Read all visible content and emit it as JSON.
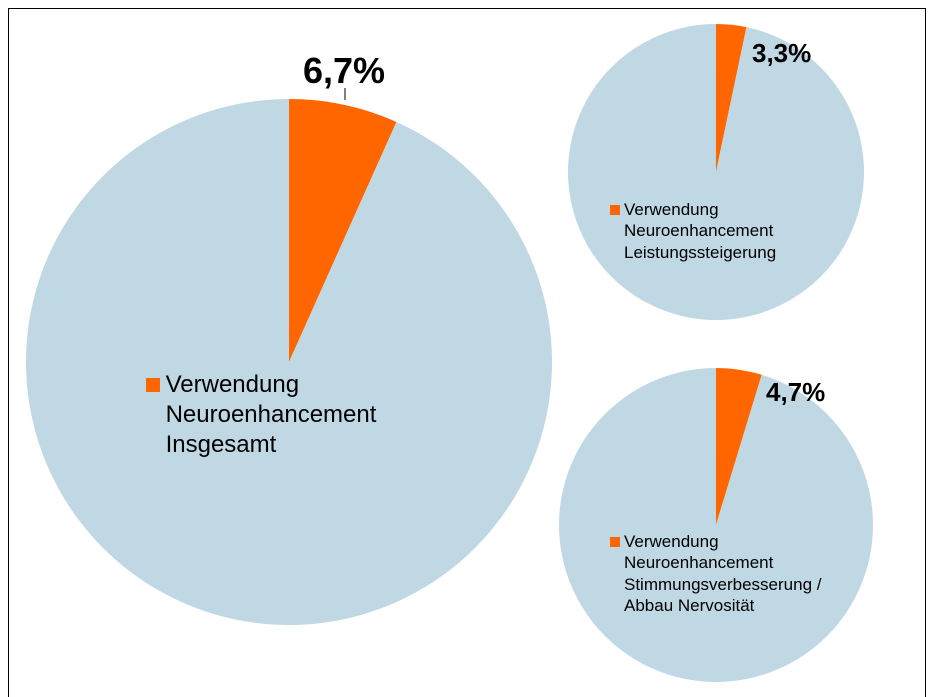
{
  "chart_data": [
    {
      "type": "pie",
      "categories": [
        "Verwendung Neuroenhancement Insgesamt",
        null
      ],
      "values": [
        6.7,
        93.3
      ],
      "value_labels": [
        "6,7%",
        null
      ],
      "colors": [
        "#ff6600",
        "#bfd8e4"
      ]
    },
    {
      "type": "pie",
      "categories": [
        "Verwendung Neuroenhancement Leistungssteigerung",
        null
      ],
      "values": [
        3.3,
        96.7
      ],
      "value_labels": [
        "3,3%",
        null
      ],
      "colors": [
        "#ff6600",
        "#bfd8e4"
      ]
    },
    {
      "type": "pie",
      "categories": [
        "Verwendung Neuroenhancement Stimmungsverbesserung / Abbau Nervosität",
        null
      ],
      "values": [
        4.7,
        95.3
      ],
      "value_labels": [
        "4,7%",
        null
      ],
      "colors": [
        "#ff6600",
        "#bfd8e4"
      ]
    }
  ]
}
